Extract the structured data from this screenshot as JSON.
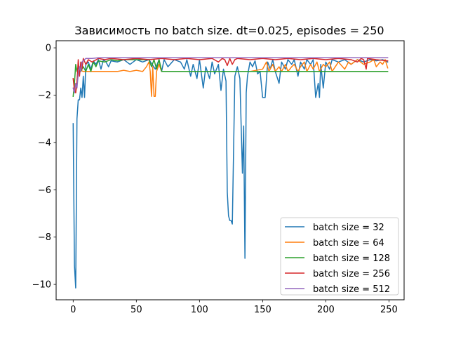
{
  "chart_data": {
    "type": "line",
    "title": "Зависимость по batch size. dt=0.025, episodes = 250",
    "xlabel": "",
    "ylabel": "",
    "xlim": [
      -13.5,
      262
    ],
    "ylim": [
      -10.65,
      0.3
    ],
    "x_ticks": [
      0,
      50,
      100,
      150,
      200,
      250
    ],
    "y_ticks": [
      0,
      -2,
      -4,
      -6,
      -8,
      -10
    ],
    "x_tick_labels": [
      "0",
      "50",
      "100",
      "150",
      "200",
      "250"
    ],
    "y_tick_labels": [
      "0",
      "−2",
      "−4",
      "−6",
      "−8",
      "−10"
    ],
    "grid": false,
    "legend_position": "lower right",
    "series": [
      {
        "name": "batch size = 32",
        "color": "#1f77b4",
        "points": [
          [
            0,
            -3.2
          ],
          [
            1,
            -9.2
          ],
          [
            2,
            -10.15
          ],
          [
            3,
            -3.0
          ],
          [
            4,
            -2.2
          ],
          [
            5,
            -2.2
          ],
          [
            6,
            -1.7
          ],
          [
            7,
            -2.1
          ],
          [
            8,
            -1.2
          ],
          [
            9,
            -2.1
          ],
          [
            10,
            -0.7
          ],
          [
            12,
            -0.6
          ],
          [
            14,
            -0.9
          ],
          [
            16,
            -0.55
          ],
          [
            18,
            -0.7
          ],
          [
            20,
            -0.5
          ],
          [
            22,
            -0.9
          ],
          [
            24,
            -0.5
          ],
          [
            26,
            -0.6
          ],
          [
            28,
            -0.8
          ],
          [
            30,
            -0.55
          ],
          [
            35,
            -0.6
          ],
          [
            40,
            -0.5
          ],
          [
            45,
            -0.7
          ],
          [
            50,
            -0.5
          ],
          [
            55,
            -0.6
          ],
          [
            60,
            -0.5
          ],
          [
            65,
            -0.9
          ],
          [
            68,
            -0.5
          ],
          [
            70,
            -1.0
          ],
          [
            72,
            -0.5
          ],
          [
            75,
            -0.8
          ],
          [
            80,
            -0.5
          ],
          [
            85,
            -0.6
          ],
          [
            88,
            -0.9
          ],
          [
            90,
            -0.5
          ],
          [
            93,
            -1.2
          ],
          [
            95,
            -0.7
          ],
          [
            98,
            -1.3
          ],
          [
            100,
            -0.5
          ],
          [
            103,
            -1.7
          ],
          [
            105,
            -0.8
          ],
          [
            108,
            -1.3
          ],
          [
            110,
            -0.6
          ],
          [
            112,
            -1.1
          ],
          [
            115,
            -0.7
          ],
          [
            117,
            -1.8
          ],
          [
            119,
            -0.9
          ],
          [
            121,
            -1.4
          ],
          [
            122,
            -6.1
          ],
          [
            123,
            -7.1
          ],
          [
            124,
            -7.3
          ],
          [
            125,
            -7.3
          ],
          [
            126,
            -7.45
          ],
          [
            128,
            -1.2
          ],
          [
            130,
            -0.8
          ],
          [
            132,
            -1.3
          ],
          [
            134,
            -5.3
          ],
          [
            135,
            -3.3
          ],
          [
            136,
            -8.9
          ],
          [
            137,
            -1.9
          ],
          [
            138,
            -1.2
          ],
          [
            140,
            -0.6
          ],
          [
            142,
            -0.8
          ],
          [
            144,
            -0.55
          ],
          [
            146,
            -1.1
          ],
          [
            148,
            -1.0
          ],
          [
            150,
            -2.1
          ],
          [
            152,
            -2.1
          ],
          [
            154,
            -0.6
          ],
          [
            156,
            -0.9
          ],
          [
            158,
            -0.5
          ],
          [
            160,
            -1.0
          ],
          [
            163,
            -1.5
          ],
          [
            165,
            -0.6
          ],
          [
            168,
            -0.9
          ],
          [
            170,
            -0.5
          ],
          [
            173,
            -0.7
          ],
          [
            175,
            -0.5
          ],
          [
            178,
            -1.2
          ],
          [
            180,
            -0.6
          ],
          [
            183,
            -0.9
          ],
          [
            185,
            -0.5
          ],
          [
            188,
            -0.7
          ],
          [
            190,
            -0.5
          ],
          [
            192,
            -2.1
          ],
          [
            194,
            -1.5
          ],
          [
            195,
            -2.1
          ],
          [
            196,
            -0.7
          ],
          [
            198,
            -1.7
          ],
          [
            200,
            -0.6
          ],
          [
            203,
            -0.9
          ],
          [
            205,
            -0.5
          ],
          [
            210,
            -0.6
          ],
          [
            215,
            -0.5
          ],
          [
            220,
            -0.7
          ],
          [
            225,
            -0.5
          ],
          [
            230,
            -0.6
          ],
          [
            235,
            -0.5
          ],
          [
            240,
            -0.55
          ],
          [
            245,
            -0.5
          ],
          [
            249,
            -0.6
          ]
        ]
      },
      {
        "name": "batch size = 64",
        "color": "#ff7f0e",
        "points": [
          [
            0,
            -1.3
          ],
          [
            1,
            -1.5
          ],
          [
            2,
            -1.9
          ],
          [
            3,
            -1.4
          ],
          [
            4,
            -1.0
          ],
          [
            6,
            -0.95
          ],
          [
            8,
            -1.0
          ],
          [
            10,
            -1.0
          ],
          [
            15,
            -1.0
          ],
          [
            20,
            -1.0
          ],
          [
            25,
            -1.0
          ],
          [
            30,
            -1.0
          ],
          [
            35,
            -1.0
          ],
          [
            40,
            -0.95
          ],
          [
            45,
            -1.0
          ],
          [
            50,
            -0.95
          ],
          [
            55,
            -1.0
          ],
          [
            58,
            -0.8
          ],
          [
            60,
            -0.6
          ],
          [
            61,
            -1.0
          ],
          [
            62,
            -2.05
          ],
          [
            63,
            -0.8
          ],
          [
            64,
            -2.05
          ],
          [
            65,
            -2.05
          ],
          [
            66,
            -1.0
          ],
          [
            68,
            -0.7
          ],
          [
            70,
            -1.0
          ],
          [
            75,
            -1.0
          ],
          [
            80,
            -1.0
          ],
          [
            85,
            -1.0
          ],
          [
            90,
            -1.0
          ],
          [
            95,
            -1.0
          ],
          [
            100,
            -1.0
          ],
          [
            105,
            -1.0
          ],
          [
            110,
            -1.0
          ],
          [
            120,
            -1.0
          ],
          [
            130,
            -1.0
          ],
          [
            140,
            -1.0
          ],
          [
            150,
            -0.9
          ],
          [
            153,
            -0.6
          ],
          [
            155,
            -1.0
          ],
          [
            158,
            -0.7
          ],
          [
            160,
            -1.0
          ],
          [
            163,
            -0.8
          ],
          [
            165,
            -1.0
          ],
          [
            168,
            -0.7
          ],
          [
            170,
            -1.0
          ],
          [
            173,
            -0.8
          ],
          [
            175,
            -0.7
          ],
          [
            178,
            -1.0
          ],
          [
            180,
            -0.8
          ],
          [
            183,
            -0.6
          ],
          [
            185,
            -1.0
          ],
          [
            188,
            -0.7
          ],
          [
            190,
            -0.9
          ],
          [
            193,
            -0.6
          ],
          [
            195,
            -1.0
          ],
          [
            198,
            -0.7
          ],
          [
            200,
            -0.8
          ],
          [
            203,
            -0.6
          ],
          [
            205,
            -1.0
          ],
          [
            210,
            -0.6
          ],
          [
            215,
            -0.9
          ],
          [
            218,
            -0.6
          ],
          [
            220,
            -0.7
          ],
          [
            225,
            -0.5
          ],
          [
            230,
            -0.7
          ],
          [
            235,
            -0.6
          ],
          [
            238,
            -0.5
          ],
          [
            240,
            -0.8
          ],
          [
            243,
            -0.6
          ],
          [
            245,
            -0.7
          ],
          [
            247,
            -0.5
          ],
          [
            249,
            -0.85
          ]
        ]
      },
      {
        "name": "batch size = 128",
        "color": "#2ca02c",
        "points": [
          [
            0,
            -2.05
          ],
          [
            1,
            -1.5
          ],
          [
            2,
            -0.7
          ],
          [
            3,
            -1.0
          ],
          [
            4,
            -0.8
          ],
          [
            5,
            -1.0
          ],
          [
            6,
            -1.0
          ],
          [
            8,
            -0.8
          ],
          [
            10,
            -1.0
          ],
          [
            12,
            -0.7
          ],
          [
            14,
            -1.0
          ],
          [
            16,
            -0.6
          ],
          [
            18,
            -0.8
          ],
          [
            20,
            -0.55
          ],
          [
            25,
            -0.6
          ],
          [
            30,
            -0.5
          ],
          [
            35,
            -0.55
          ],
          [
            40,
            -0.5
          ],
          [
            45,
            -0.5
          ],
          [
            50,
            -0.5
          ],
          [
            55,
            -0.5
          ],
          [
            60,
            -0.5
          ],
          [
            62,
            -0.8
          ],
          [
            64,
            -0.5
          ],
          [
            66,
            -0.9
          ],
          [
            68,
            -0.5
          ],
          [
            70,
            -1.0
          ],
          [
            75,
            -1.0
          ],
          [
            80,
            -1.0
          ],
          [
            85,
            -1.0
          ],
          [
            90,
            -1.0
          ],
          [
            100,
            -1.0
          ],
          [
            120,
            -1.0
          ],
          [
            140,
            -1.0
          ],
          [
            160,
            -1.0
          ],
          [
            180,
            -1.0
          ],
          [
            200,
            -1.0
          ],
          [
            220,
            -1.0
          ],
          [
            240,
            -1.0
          ],
          [
            249,
            -1.0
          ]
        ]
      },
      {
        "name": "batch size = 256",
        "color": "#d62728",
        "points": [
          [
            0,
            -1.3
          ],
          [
            1,
            -1.8
          ],
          [
            2,
            -1.9
          ],
          [
            3,
            -1.5
          ],
          [
            4,
            -0.5
          ],
          [
            5,
            -1.2
          ],
          [
            6,
            -0.6
          ],
          [
            7,
            -0.9
          ],
          [
            8,
            -0.45
          ],
          [
            10,
            -0.7
          ],
          [
            12,
            -0.5
          ],
          [
            15,
            -0.6
          ],
          [
            20,
            -0.45
          ],
          [
            25,
            -0.5
          ],
          [
            30,
            -0.45
          ],
          [
            40,
            -0.5
          ],
          [
            50,
            -0.45
          ],
          [
            60,
            -0.5
          ],
          [
            70,
            -0.45
          ],
          [
            80,
            -0.5
          ],
          [
            90,
            -0.45
          ],
          [
            100,
            -0.5
          ],
          [
            110,
            -0.45
          ],
          [
            115,
            -0.6
          ],
          [
            118,
            -0.45
          ],
          [
            120,
            -0.5
          ],
          [
            122,
            -0.75
          ],
          [
            124,
            -0.45
          ],
          [
            126,
            -0.7
          ],
          [
            128,
            -0.5
          ],
          [
            130,
            -0.45
          ],
          [
            140,
            -0.5
          ],
          [
            150,
            -0.45
          ],
          [
            160,
            -0.5
          ],
          [
            170,
            -0.45
          ],
          [
            180,
            -0.5
          ],
          [
            190,
            -0.45
          ],
          [
            200,
            -0.5
          ],
          [
            210,
            -0.45
          ],
          [
            220,
            -0.5
          ],
          [
            225,
            -0.6
          ],
          [
            228,
            -0.45
          ],
          [
            230,
            -0.5
          ],
          [
            232,
            -0.9
          ],
          [
            233,
            -0.45
          ],
          [
            240,
            -0.5
          ],
          [
            249,
            -0.55
          ]
        ]
      },
      {
        "name": "batch size = 512",
        "color": "#9467bd",
        "points": [
          [
            0,
            -1.7
          ],
          [
            1,
            -1.9
          ],
          [
            2,
            -1.5
          ],
          [
            3,
            -1.7
          ],
          [
            4,
            -1.1
          ],
          [
            5,
            -0.8
          ],
          [
            6,
            -1.0
          ],
          [
            7,
            -0.6
          ],
          [
            8,
            -0.55
          ],
          [
            10,
            -0.45
          ],
          [
            15,
            -0.45
          ],
          [
            20,
            -0.42
          ],
          [
            30,
            -0.42
          ],
          [
            40,
            -0.42
          ],
          [
            50,
            -0.42
          ],
          [
            60,
            -0.42
          ],
          [
            70,
            -0.42
          ],
          [
            80,
            -0.42
          ],
          [
            90,
            -0.42
          ],
          [
            100,
            -0.42
          ],
          [
            110,
            -0.42
          ],
          [
            120,
            -0.42
          ],
          [
            130,
            -0.42
          ],
          [
            140,
            -0.42
          ],
          [
            150,
            -0.42
          ],
          [
            160,
            -0.42
          ],
          [
            170,
            -0.42
          ],
          [
            180,
            -0.42
          ],
          [
            190,
            -0.42
          ],
          [
            200,
            -0.42
          ],
          [
            210,
            -0.42
          ],
          [
            220,
            -0.42
          ],
          [
            230,
            -0.42
          ],
          [
            240,
            -0.42
          ],
          [
            249,
            -0.42
          ]
        ]
      }
    ]
  }
}
